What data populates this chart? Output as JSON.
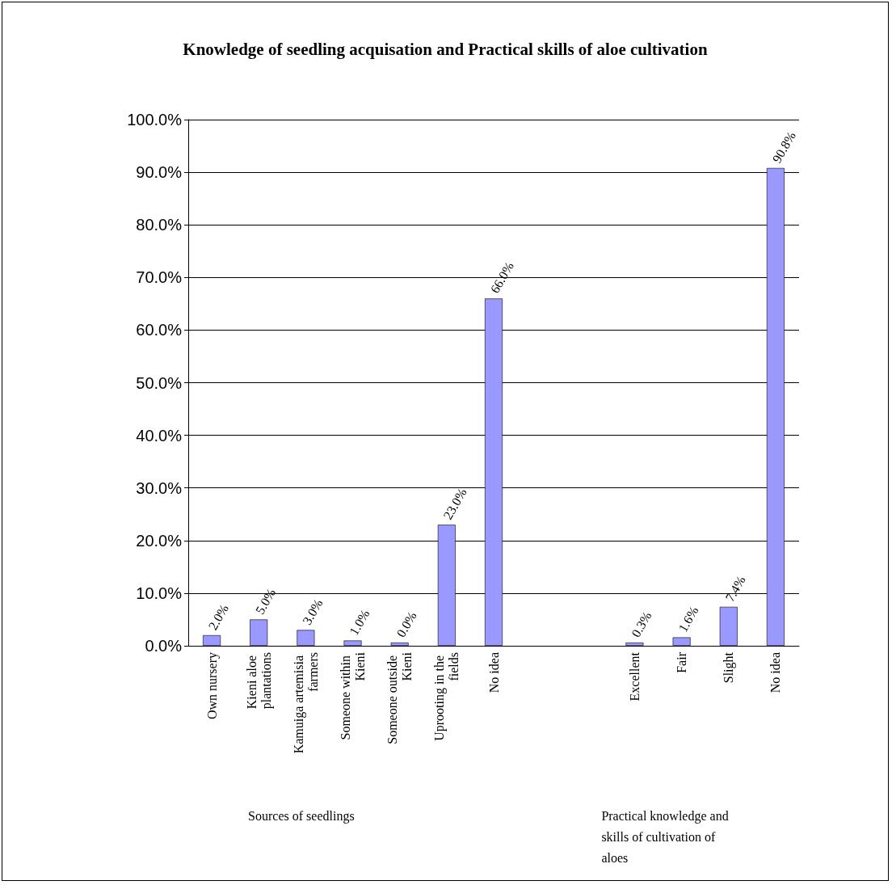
{
  "chart_data": {
    "type": "bar",
    "title": "Knowledge of seedling acquisation and Practical skills of aloe cultivation",
    "categories": [
      "Own nursery",
      "Kieni aloe plantations",
      "Kamuiga artemisia farmers",
      "Someone within Kieni",
      "Someone outside Kieni",
      "Uprooting in the fields",
      "No idea",
      null,
      null,
      "Excellent",
      "Fair",
      "Slight",
      "No idea"
    ],
    "values": [
      2.0,
      5.0,
      3.0,
      1.0,
      0.0,
      23.0,
      66.0,
      null,
      null,
      0.3,
      1.6,
      7.4,
      90.8
    ],
    "value_labels": [
      "2.0%",
      "5.0%",
      "3.0%",
      "1.0%",
      "0.0%",
      "23.0%",
      "66.0%",
      null,
      null,
      "0.3%",
      "1.6%",
      "7.4%",
      "90.8%"
    ],
    "color": "#9999ff",
    "ylim": [
      0,
      100
    ],
    "yticks": [
      {
        "value": 0,
        "label": "0.0%"
      },
      {
        "value": 10,
        "label": "10.0%"
      },
      {
        "value": 20,
        "label": "20.0%"
      },
      {
        "value": 30,
        "label": "30.0%"
      },
      {
        "value": 40,
        "label": "40.0%"
      },
      {
        "value": 50,
        "label": "50.0%"
      },
      {
        "value": 60,
        "label": "60.0%"
      },
      {
        "value": 70,
        "label": "70.0%"
      },
      {
        "value": 80,
        "label": "80.0%"
      },
      {
        "value": 90,
        "label": "90.0%"
      },
      {
        "value": 100,
        "label": "100.0%"
      }
    ],
    "grid": "y",
    "annotations": [
      "Sources of seedlings",
      "Practical knowledge and skills of cultivation of aloes"
    ]
  }
}
